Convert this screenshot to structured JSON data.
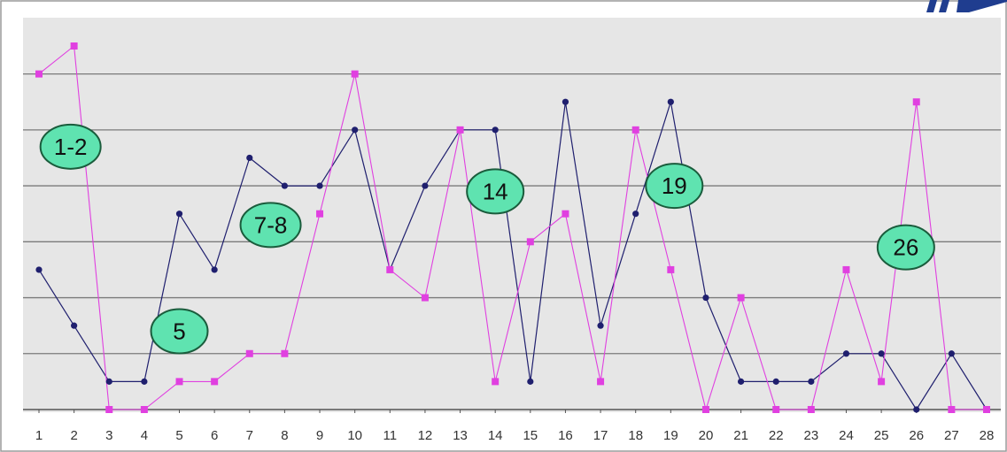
{
  "chart_data": {
    "type": "line",
    "title": "",
    "xlabel": "",
    "ylabel": "",
    "x": [
      1,
      2,
      3,
      4,
      5,
      6,
      7,
      8,
      9,
      10,
      11,
      12,
      13,
      14,
      15,
      16,
      17,
      18,
      19,
      20,
      21,
      22,
      23,
      24,
      25,
      26,
      27,
      28
    ],
    "ylim": [
      0,
      6.3
    ],
    "grid": true,
    "series": [
      {
        "color": "#1f1f6e",
        "values": [
          2.5,
          1.5,
          0.5,
          0.5,
          3.5,
          2.5,
          4.5,
          4,
          4,
          5,
          2.5,
          4,
          5,
          5,
          0.5,
          5.5,
          1.5,
          3.5,
          5.5,
          2,
          0.5,
          0.5,
          0.5,
          1,
          1,
          0,
          1,
          0
        ]
      },
      {
        "color": "#e040e0",
        "values": [
          6,
          6.5,
          0,
          0,
          0.5,
          0.5,
          1,
          1,
          3.5,
          6,
          2.5,
          2,
          5,
          0.5,
          3,
          3.5,
          0.5,
          5,
          2.5,
          0,
          2,
          0,
          0,
          2.5,
          0.5,
          5.5,
          0,
          0
        ]
      }
    ],
    "annotations": [
      {
        "text": "1-2",
        "x": 1.9,
        "y": 4.7
      },
      {
        "text": "5",
        "x": 5.0,
        "y": 1.4
      },
      {
        "text": "7-8",
        "x": 7.6,
        "y": 3.3
      },
      {
        "text": "14",
        "x": 14.0,
        "y": 3.9
      },
      {
        "text": "19",
        "x": 19.1,
        "y": 4.0
      },
      {
        "text": "26",
        "x": 25.7,
        "y": 2.9
      }
    ],
    "colors": {
      "plot_background": "#e6e6e6",
      "gridline": "#7a7a7a",
      "annotation_fill": "#5fe3b0",
      "annotation_stroke": "#1a5c3c",
      "logo": "#1f3d8f"
    }
  }
}
